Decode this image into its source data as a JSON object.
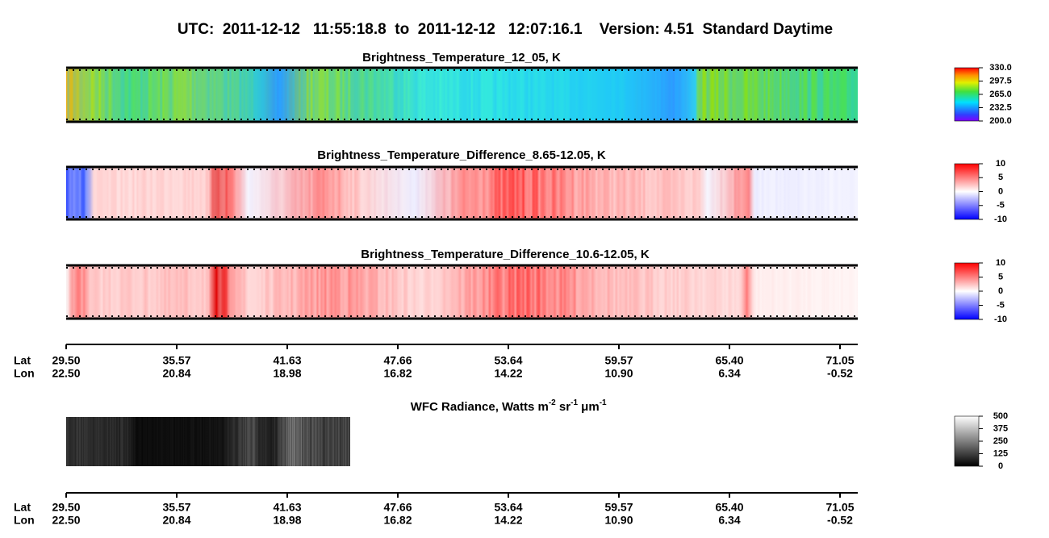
{
  "title": "UTC:  2011-12-12   11:55:18.8  to  2011-12-12   12:07:16.1    Version: 4.51  Standard Daytime",
  "panels": [
    {
      "title": "Brightness_Temperature_12_05, K",
      "colorbar": [
        "330.0",
        "297.5",
        "265.0",
        "232.5",
        "200.0"
      ]
    },
    {
      "title": "Brightness_Temperature_Difference_8.65-12.05, K",
      "colorbar": [
        "10",
        "5",
        "0",
        "-5",
        "-10"
      ]
    },
    {
      "title": "Brightness_Temperature_Difference_10.6-12.05, K",
      "colorbar": [
        "10",
        "5",
        "0",
        "-5",
        "-10"
      ]
    }
  ],
  "wfc": {
    "title_parts": [
      "WFC Radiance, Watts m",
      "-2",
      " sr",
      "-1",
      " μm",
      "-1"
    ],
    "colorbar": [
      "500",
      "375",
      "250",
      "125",
      "0"
    ]
  },
  "axes": [
    {
      "lat_label": "Lat",
      "lon_label": "Lon",
      "lat": [
        "29.50",
        "35.57",
        "41.63",
        "47.66",
        "53.64",
        "59.57",
        "65.40",
        "71.05"
      ],
      "lon": [
        "22.50",
        "20.84",
        "18.98",
        "16.82",
        "14.22",
        "10.90",
        "6.34",
        "-0.52"
      ]
    },
    {
      "lat_label": "Lat",
      "lon_label": "Lon",
      "lat": [
        "29.50",
        "35.57",
        "41.63",
        "47.66",
        "53.64",
        "59.57",
        "65.40",
        "71.05"
      ],
      "lon": [
        "22.50",
        "20.84",
        "18.98",
        "16.82",
        "14.22",
        "10.90",
        "6.34",
        "-0.52"
      ]
    }
  ]
}
